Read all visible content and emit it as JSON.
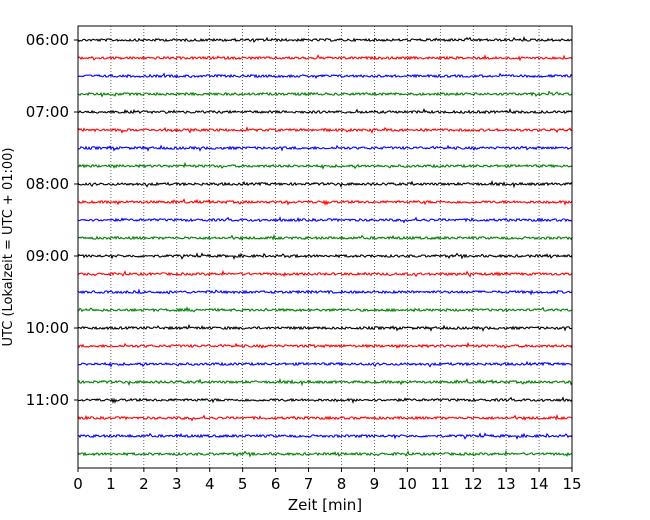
{
  "chart_data": {
    "type": "line",
    "title": "",
    "xlabel": "Zeit  [min]",
    "ylabel": "UTC (Lokalzeit = UTC + 01:00)",
    "xlim": [
      0,
      15
    ],
    "x_ticks": [
      "0",
      "1",
      "2",
      "3",
      "4",
      "5",
      "6",
      "7",
      "8",
      "9",
      "10",
      "11",
      "12",
      "13",
      "14",
      "15"
    ],
    "y_ticks": [
      "06:00",
      "07:00",
      "08:00",
      "09:00",
      "10:00",
      "11:00"
    ],
    "grid": "vertical-dotted",
    "trace_interval_minutes": 15,
    "start_time": "06:00",
    "colors": [
      "#000000",
      "#ff0000",
      "#0000ff",
      "#008000"
    ],
    "traces": [
      {
        "start": "06:00",
        "color": "#000000"
      },
      {
        "start": "06:15",
        "color": "#ff0000"
      },
      {
        "start": "06:30",
        "color": "#0000ff"
      },
      {
        "start": "06:45",
        "color": "#008000"
      },
      {
        "start": "07:00",
        "color": "#000000"
      },
      {
        "start": "07:15",
        "color": "#ff0000"
      },
      {
        "start": "07:30",
        "color": "#0000ff"
      },
      {
        "start": "07:45",
        "color": "#008000"
      },
      {
        "start": "08:00",
        "color": "#000000"
      },
      {
        "start": "08:15",
        "color": "#ff0000"
      },
      {
        "start": "08:30",
        "color": "#0000ff"
      },
      {
        "start": "08:45",
        "color": "#008000"
      },
      {
        "start": "09:00",
        "color": "#000000"
      },
      {
        "start": "09:15",
        "color": "#ff0000"
      },
      {
        "start": "09:30",
        "color": "#0000ff"
      },
      {
        "start": "09:45",
        "color": "#008000"
      },
      {
        "start": "10:00",
        "color": "#000000"
      },
      {
        "start": "10:15",
        "color": "#ff0000"
      },
      {
        "start": "10:30",
        "color": "#0000ff"
      },
      {
        "start": "10:45",
        "color": "#008000"
      },
      {
        "start": "11:00",
        "color": "#000000"
      },
      {
        "start": "11:15",
        "color": "#ff0000"
      },
      {
        "start": "11:30",
        "color": "#0000ff"
      },
      {
        "start": "11:45",
        "color": "#008000"
      }
    ]
  }
}
